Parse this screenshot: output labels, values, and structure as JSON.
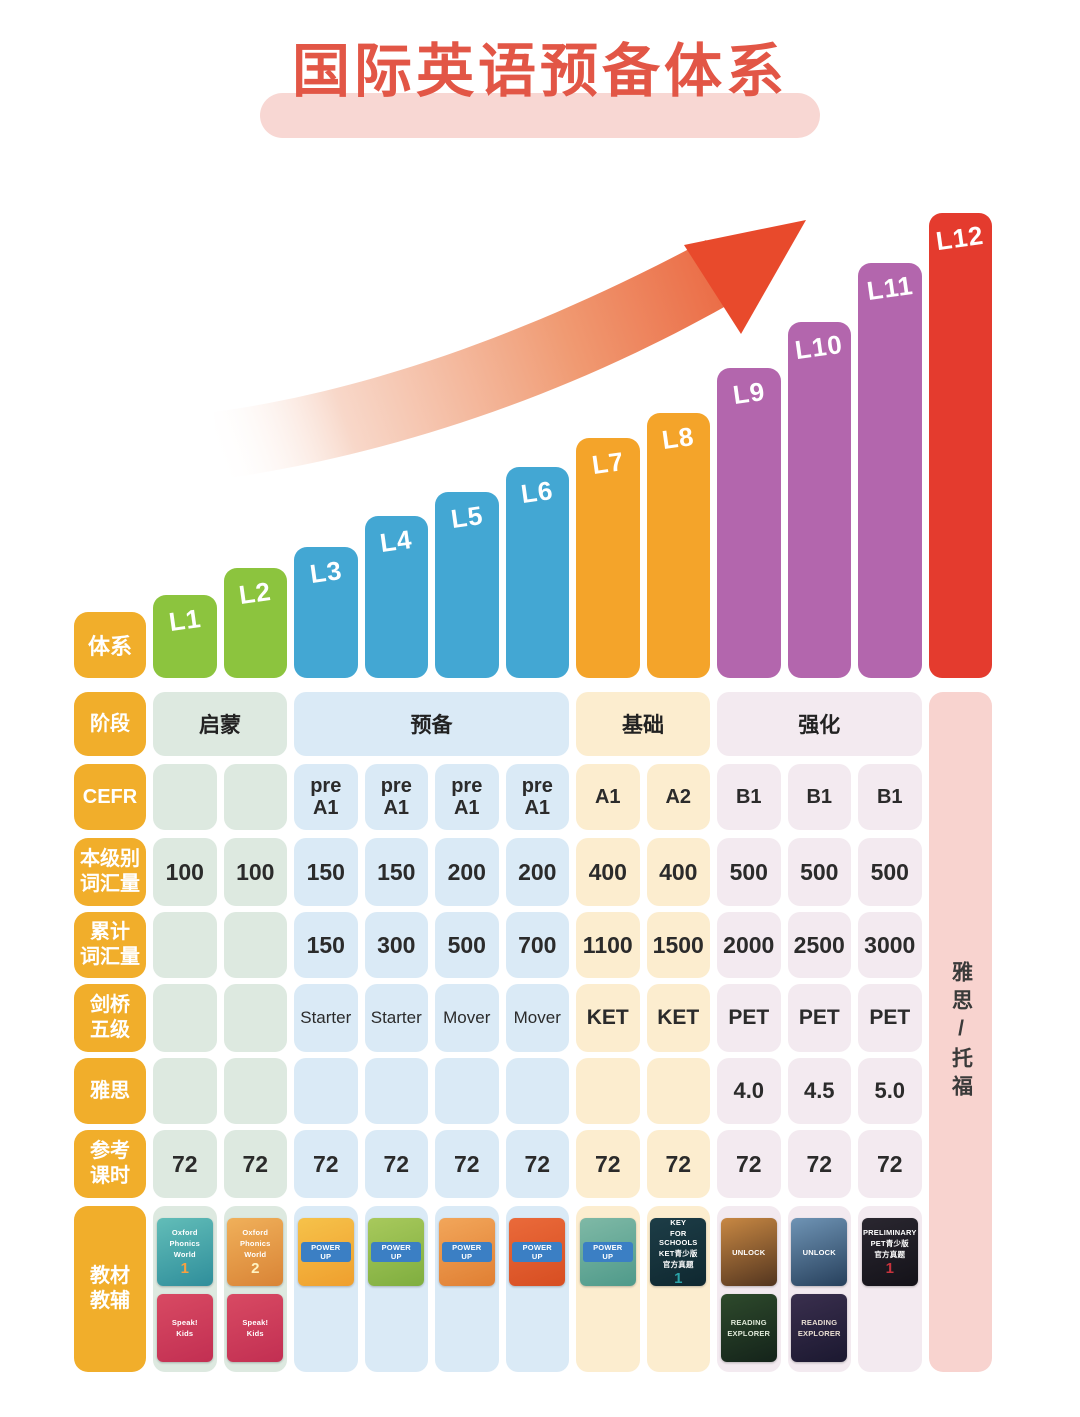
{
  "title": "国际英语预备体系",
  "system_label": "体系",
  "side_column": {
    "label": "雅思/托福"
  },
  "rows": [
    {
      "key": "stage",
      "label": "阶段"
    },
    {
      "key": "cefr",
      "label": "CEFR"
    },
    {
      "key": "level_vocab",
      "label": "本级别\n词汇量"
    },
    {
      "key": "cum_vocab",
      "label": "累计\n词汇量"
    },
    {
      "key": "cambridge",
      "label": "剑桥\n五级"
    },
    {
      "key": "ielts",
      "label": "雅思"
    },
    {
      "key": "hours",
      "label": "参考\n课时"
    },
    {
      "key": "books",
      "label": "教材\n教辅"
    }
  ],
  "stages": [
    {
      "label": "启蒙",
      "span": 2,
      "cell_color": "#dde9e0",
      "bar_color": "#8cc43e"
    },
    {
      "label": "预备",
      "span": 4,
      "cell_color": "#daeaf6",
      "bar_color": "#43a7d3"
    },
    {
      "label": "基础",
      "span": 2,
      "cell_color": "#fcedcf",
      "bar_color": "#f4a42a"
    },
    {
      "label": "强化",
      "span": 3,
      "cell_color": "#f3eaf0",
      "bar_color": "#b366ad"
    },
    {
      "label": "",
      "span": 1,
      "cell_color": "#f8d3cf",
      "bar_color": "#e43b2e"
    }
  ],
  "columns": [
    {
      "level": "L1",
      "cefr": "",
      "level_vocab": "100",
      "cum_vocab": "",
      "cambridge": "",
      "ielts": "",
      "hours": "72",
      "books": [
        {
          "lines": [
            "Oxford",
            "Phonics",
            "World"
          ],
          "num": "1",
          "c1": "#62bdb8",
          "c2": "#2f8e9b",
          "tc": "#ffffff",
          "accent": "#f9a03f"
        },
        {
          "lines": [
            "Speak!",
            "Kids"
          ],
          "num": "",
          "c1": "#d84a63",
          "c2": "#c22f52",
          "tc": "#ffffff",
          "accent": "#ffd34d"
        }
      ]
    },
    {
      "level": "L2",
      "cefr": "",
      "level_vocab": "100",
      "cum_vocab": "",
      "cambridge": "",
      "ielts": "",
      "hours": "72",
      "books": [
        {
          "lines": [
            "Oxford",
            "Phonics",
            "World"
          ],
          "num": "2",
          "c1": "#f0b05a",
          "c2": "#d98436",
          "tc": "#ffffff",
          "accent": "#fff3c2"
        },
        {
          "lines": [
            "Speak!",
            "Kids"
          ],
          "num": "",
          "c1": "#d84a63",
          "c2": "#c22f52",
          "tc": "#ffffff",
          "accent": "#ffd34d"
        }
      ]
    },
    {
      "level": "L3",
      "cefr": "pre\nA1",
      "level_vocab": "150",
      "cum_vocab": "150",
      "cambridge": "Starter",
      "ielts": "",
      "hours": "72",
      "books": [
        {
          "lines": [
            "POWER UP"
          ],
          "num": "",
          "ribbon": true,
          "c1": "#f6c24a",
          "c2": "#ef9f2e",
          "tc": "#ffffff",
          "accent": "#3b7fc4"
        }
      ]
    },
    {
      "level": "L4",
      "cefr": "pre\nA1",
      "level_vocab": "150",
      "cum_vocab": "300",
      "cambridge": "Starter",
      "ielts": "",
      "hours": "72",
      "books": [
        {
          "lines": [
            "POWER UP"
          ],
          "num": "",
          "ribbon": true,
          "c1": "#a8c95c",
          "c2": "#7fae3f",
          "tc": "#ffffff",
          "accent": "#3b7fc4"
        }
      ]
    },
    {
      "level": "L5",
      "cefr": "pre\nA1",
      "level_vocab": "200",
      "cum_vocab": "500",
      "cambridge": "Mover",
      "ielts": "",
      "hours": "72",
      "books": [
        {
          "lines": [
            "POWER UP"
          ],
          "num": "",
          "ribbon": true,
          "c1": "#f2a65a",
          "c2": "#e07f33",
          "tc": "#ffffff",
          "accent": "#3b7fc4"
        }
      ]
    },
    {
      "level": "L6",
      "cefr": "pre\nA1",
      "level_vocab": "200",
      "cum_vocab": "700",
      "cambridge": "Mover",
      "ielts": "",
      "hours": "72",
      "books": [
        {
          "lines": [
            "POWER UP"
          ],
          "num": "",
          "ribbon": true,
          "c1": "#ea6a3a",
          "c2": "#d74e22",
          "tc": "#ffffff",
          "accent": "#3b7fc4"
        }
      ]
    },
    {
      "level": "L7",
      "cefr": "A1",
      "level_vocab": "400",
      "cum_vocab": "1100",
      "cambridge": "KET",
      "ielts": "",
      "hours": "72",
      "books": [
        {
          "lines": [
            "POWER UP"
          ],
          "num": "",
          "ribbon": true,
          "c1": "#7fb9a6",
          "c2": "#4f9a8a",
          "tc": "#ffffff",
          "accent": "#3b7fc4"
        }
      ]
    },
    {
      "level": "L8",
      "cefr": "A2",
      "level_vocab": "400",
      "cum_vocab": "1500",
      "cambridge": "KET",
      "ielts": "",
      "hours": "72",
      "books": [
        {
          "lines": [
            "KEY",
            "FOR SCHOOLS",
            "KET青少版",
            "官方真题"
          ],
          "num": "1",
          "c1": "#1d3d47",
          "c2": "#0f2830",
          "tc": "#ffffff",
          "accent": "#2aa3a8"
        }
      ]
    },
    {
      "level": "L9",
      "cefr": "B1",
      "level_vocab": "500",
      "cum_vocab": "2000",
      "cambridge": "PET",
      "ielts": "4.0",
      "hours": "72",
      "books": [
        {
          "lines": [
            "UNLOCK"
          ],
          "num": "",
          "c1": "#c88843",
          "c2": "#53351f",
          "tc": "#ffffff",
          "accent": "#e2512e"
        },
        {
          "lines": [
            "READING",
            "EXPLORER"
          ],
          "num": "",
          "c1": "#2e4a2c",
          "c2": "#14231a",
          "tc": "#dfe8d8",
          "accent": "#7fbf4e"
        }
      ]
    },
    {
      "level": "L10",
      "cefr": "B1",
      "level_vocab": "500",
      "cum_vocab": "2500",
      "cambridge": "PET",
      "ielts": "4.5",
      "hours": "72",
      "books": [
        {
          "lines": [
            "UNLOCK"
          ],
          "num": "",
          "c1": "#6f94b5",
          "c2": "#27405c",
          "tc": "#ffffff",
          "accent": "#e2512e"
        },
        {
          "lines": [
            "READING",
            "EXPLORER"
          ],
          "num": "",
          "c1": "#3a2f4e",
          "c2": "#1b1830",
          "tc": "#e8ddd2",
          "accent": "#d06034"
        }
      ]
    },
    {
      "level": "L11",
      "cefr": "B1",
      "level_vocab": "500",
      "cum_vocab": "3000",
      "cambridge": "PET",
      "ielts": "5.0",
      "hours": "72",
      "books": [
        {
          "lines": [
            "PRELIMINARY",
            "PET青少版",
            "官方真题"
          ],
          "num": "1",
          "c1": "#2a2730",
          "c2": "#141219",
          "tc": "#ffffff",
          "accent": "#c8333d"
        }
      ]
    },
    {
      "level": "L12",
      "cefr": "",
      "level_vocab": "",
      "cum_vocab": "",
      "cambridge": "",
      "ielts": "",
      "hours": "",
      "books": []
    }
  ],
  "chart_data": [
    {
      "type": "bar",
      "title": "国际英语预备体系",
      "categories": [
        "L1",
        "L2",
        "L3",
        "L4",
        "L5",
        "L6",
        "L7",
        "L8",
        "L9",
        "L10",
        "L11",
        "L12"
      ],
      "values": [
        83,
        110,
        131,
        162,
        186,
        211,
        240,
        265,
        310,
        356,
        415,
        465
      ],
      "values_unit": "relative bar height, ascending level staircase (no numeric axis shown)",
      "series_colors": [
        "#8cc43e",
        "#8cc43e",
        "#43a7d3",
        "#43a7d3",
        "#43a7d3",
        "#43a7d3",
        "#f4a42a",
        "#f4a42a",
        "#b366ad",
        "#b366ad",
        "#b366ad",
        "#e43b2e"
      ],
      "xlabel": "体系",
      "ylabel": "",
      "grid": false,
      "legend": false,
      "annotations": [
        "红色上升箭头 (growth arrow)"
      ]
    },
    {
      "type": "table",
      "columns": [
        "体系",
        "阶段",
        "CEFR",
        "本级别词汇量",
        "累计词汇量",
        "剑桥五级",
        "雅思",
        "参考课时",
        "教材教辅"
      ],
      "rows": [
        [
          "L1",
          "启蒙",
          "",
          "100",
          "",
          "",
          "",
          "72",
          "Oxford Phonics World 1; Speak! Kids"
        ],
        [
          "L2",
          "启蒙",
          "",
          "100",
          "",
          "",
          "",
          "72",
          "Oxford Phonics World 2; Speak! Kids"
        ],
        [
          "L3",
          "预备",
          "pre A1",
          "150",
          "150",
          "Starter",
          "",
          "72",
          "Power Up"
        ],
        [
          "L4",
          "预备",
          "pre A1",
          "150",
          "300",
          "Starter",
          "",
          "72",
          "Power Up"
        ],
        [
          "L5",
          "预备",
          "pre A1",
          "200",
          "500",
          "Mover",
          "",
          "72",
          "Power Up"
        ],
        [
          "L6",
          "预备",
          "pre A1",
          "200",
          "700",
          "Mover",
          "",
          "72",
          "Power Up"
        ],
        [
          "L7",
          "基础",
          "A1",
          "400",
          "1100",
          "KET",
          "",
          "72",
          "Power Up"
        ],
        [
          "L8",
          "基础",
          "A2",
          "400",
          "1500",
          "KET",
          "",
          "72",
          "KEY for Schools KET青少版官方真题 1"
        ],
        [
          "L9",
          "强化",
          "B1",
          "500",
          "2000",
          "PET",
          "4.0",
          "72",
          "Unlock; Reading Explorer"
        ],
        [
          "L10",
          "强化",
          "B1",
          "500",
          "2500",
          "PET",
          "4.5",
          "72",
          "Unlock; Reading Explorer"
        ],
        [
          "L11",
          "强化",
          "B1",
          "500",
          "3000",
          "PET",
          "5.0",
          "72",
          "Preliminary PET青少版官方真题 1"
        ],
        [
          "L12",
          "雅思/托福",
          "",
          "",
          "",
          "",
          "",
          "",
          ""
        ]
      ]
    }
  ]
}
